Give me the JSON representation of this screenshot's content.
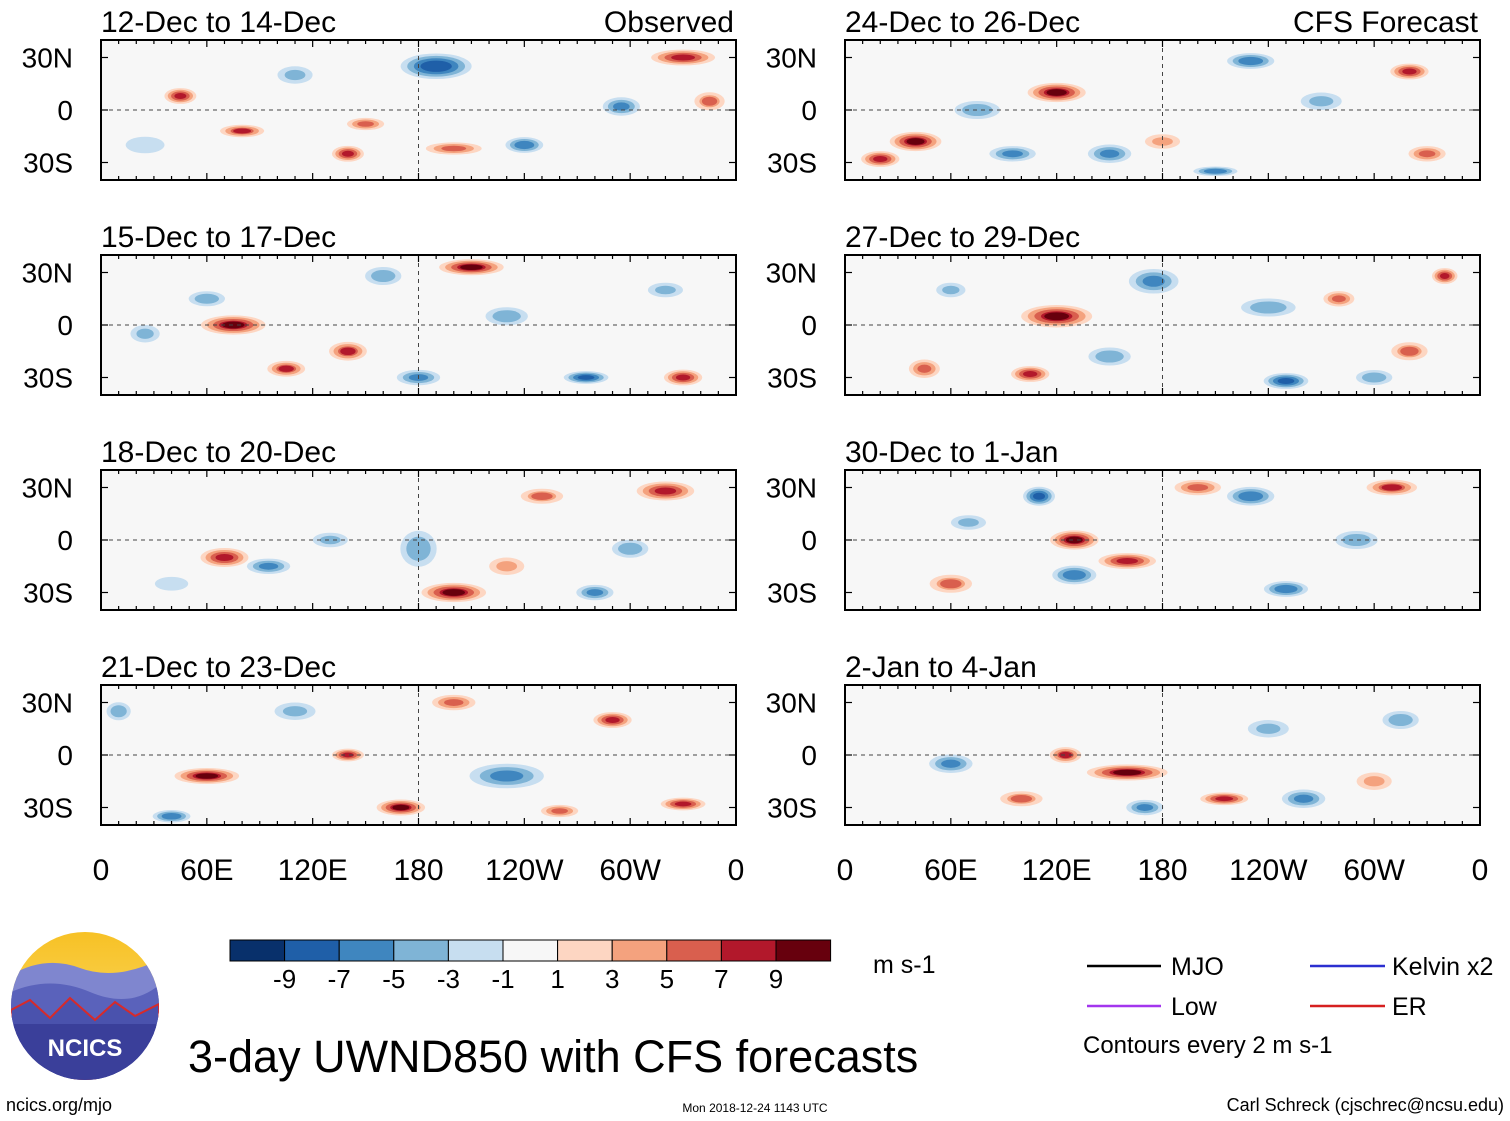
{
  "chart_data": {
    "type": "heatmap",
    "title": "3-day UWND850 with CFS forecasts",
    "variable": "850-hPa zonal wind anomaly",
    "units": "m s-1",
    "contour_note": "Contours every 2 m s-1",
    "x_ticks": [
      "0",
      "60E",
      "120E",
      "180",
      "120W",
      "60W",
      "0"
    ],
    "y_ticks": [
      "30N",
      "0",
      "30S"
    ],
    "xlim_deg_east": [
      0,
      360
    ],
    "ylim_deg": [
      -40,
      40
    ],
    "colorbar": {
      "tick_labels": [
        "-9",
        "-7",
        "-5",
        "-3",
        "-1",
        "1",
        "3",
        "5",
        "7",
        "9"
      ],
      "colors": [
        "#08306b",
        "#1f5fa8",
        "#3f86bf",
        "#7fb4d6",
        "#c7def0",
        "#f7f7f7",
        "#fdd6c2",
        "#f4a27e",
        "#d95f4e",
        "#b2182b",
        "#67000d"
      ]
    },
    "legend": [
      {
        "label": "MJO",
        "color": "#000000"
      },
      {
        "label": "Kelvin x2",
        "color": "#2b2fd0"
      },
      {
        "label": "Low",
        "color": "#a335ee"
      },
      {
        "label": "ER",
        "color": "#d62020"
      }
    ],
    "panels": [
      {
        "period": "12-Dec to 14-Dec",
        "tag": "Observed",
        "col": 0,
        "row": 0,
        "blobs": [
          [
            45,
            8,
            10,
            5,
            8
          ],
          [
            80,
            -12,
            14,
            4,
            7
          ],
          [
            140,
            -25,
            10,
            5,
            8
          ],
          [
            150,
            -8,
            12,
            4,
            6
          ],
          [
            190,
            25,
            22,
            8,
            -9
          ],
          [
            240,
            -20,
            12,
            5,
            -7
          ],
          [
            295,
            2,
            12,
            6,
            -6
          ],
          [
            330,
            30,
            20,
            5,
            8
          ],
          [
            200,
            -22,
            18,
            4,
            6
          ],
          [
            110,
            20,
            12,
            6,
            -4
          ],
          [
            345,
            5,
            10,
            6,
            5
          ],
          [
            25,
            -20,
            14,
            6,
            -3
          ]
        ]
      },
      {
        "period": "24-Dec to 26-Dec",
        "tag": "CFS Forecast",
        "col": 1,
        "row": 0,
        "blobs": [
          [
            120,
            10,
            18,
            6,
            9
          ],
          [
            40,
            -18,
            16,
            6,
            9
          ],
          [
            20,
            -28,
            12,
            5,
            8
          ],
          [
            230,
            28,
            15,
            5,
            -7
          ],
          [
            320,
            22,
            12,
            5,
            8
          ],
          [
            150,
            -25,
            14,
            6,
            -6
          ],
          [
            75,
            0,
            15,
            6,
            -5
          ],
          [
            95,
            -25,
            15,
            5,
            -6
          ],
          [
            210,
            -35,
            14,
            3,
            -7
          ],
          [
            330,
            -25,
            12,
            5,
            6
          ],
          [
            270,
            5,
            14,
            6,
            -4
          ],
          [
            180,
            -18,
            12,
            5,
            4
          ]
        ]
      },
      {
        "period": "15-Dec to 17-Dec",
        "tag": "",
        "col": 0,
        "row": 1,
        "blobs": [
          [
            75,
            0,
            20,
            6,
            9
          ],
          [
            210,
            33,
            20,
            5,
            9
          ],
          [
            140,
            -15,
            12,
            6,
            7
          ],
          [
            105,
            -25,
            12,
            5,
            7
          ],
          [
            275,
            -30,
            14,
            4,
            -8
          ],
          [
            60,
            15,
            12,
            5,
            -5
          ],
          [
            160,
            28,
            12,
            6,
            -5
          ],
          [
            330,
            -30,
            12,
            5,
            8
          ],
          [
            320,
            20,
            12,
            5,
            -4
          ],
          [
            25,
            -5,
            10,
            6,
            -4
          ],
          [
            230,
            5,
            14,
            6,
            -5
          ],
          [
            180,
            -30,
            14,
            5,
            -6
          ]
        ]
      },
      {
        "period": "27-Dec to 29-Dec",
        "tag": "",
        "col": 1,
        "row": 1,
        "blobs": [
          [
            120,
            5,
            22,
            7,
            9
          ],
          [
            105,
            -28,
            12,
            5,
            8
          ],
          [
            45,
            -25,
            10,
            6,
            6
          ],
          [
            250,
            -32,
            14,
            5,
            -8
          ],
          [
            340,
            28,
            8,
            5,
            8
          ],
          [
            175,
            25,
            16,
            8,
            -6
          ],
          [
            240,
            10,
            18,
            6,
            -5
          ],
          [
            320,
            -15,
            12,
            6,
            5
          ],
          [
            150,
            -18,
            14,
            6,
            -5
          ],
          [
            60,
            20,
            10,
            5,
            -4
          ],
          [
            300,
            -30,
            12,
            5,
            -5
          ],
          [
            280,
            15,
            10,
            5,
            6
          ]
        ]
      },
      {
        "period": "18-Dec to 20-Dec",
        "tag": "",
        "col": 0,
        "row": 2,
        "blobs": [
          [
            70,
            -10,
            15,
            6,
            8
          ],
          [
            200,
            -30,
            20,
            6,
            9
          ],
          [
            320,
            28,
            18,
            6,
            8
          ],
          [
            95,
            -15,
            14,
            5,
            -6
          ],
          [
            180,
            -5,
            12,
            12,
            -5
          ],
          [
            280,
            -30,
            12,
            5,
            -6
          ],
          [
            300,
            -5,
            12,
            6,
            -5
          ],
          [
            250,
            25,
            14,
            5,
            5
          ],
          [
            130,
            0,
            12,
            5,
            -4
          ],
          [
            40,
            -25,
            12,
            5,
            -3
          ],
          [
            230,
            -15,
            12,
            6,
            4
          ]
        ]
      },
      {
        "period": "30-Dec to 1-Jan",
        "tag": "",
        "col": 1,
        "row": 2,
        "blobs": [
          [
            130,
            0,
            15,
            6,
            9
          ],
          [
            160,
            -12,
            18,
            5,
            8
          ],
          [
            130,
            -20,
            14,
            6,
            -7
          ],
          [
            110,
            25,
            10,
            6,
            -8
          ],
          [
            230,
            25,
            15,
            6,
            -7
          ],
          [
            310,
            30,
            16,
            5,
            7
          ],
          [
            250,
            -28,
            14,
            5,
            -7
          ],
          [
            60,
            -25,
            14,
            6,
            5
          ],
          [
            70,
            10,
            12,
            5,
            -4
          ],
          [
            200,
            30,
            15,
            5,
            6
          ],
          [
            290,
            0,
            14,
            6,
            -5
          ]
        ]
      },
      {
        "period": "21-Dec to 23-Dec",
        "tag": "",
        "col": 0,
        "row": 3,
        "blobs": [
          [
            60,
            -12,
            20,
            5,
            9
          ],
          [
            140,
            0,
            10,
            4,
            8
          ],
          [
            170,
            -30,
            15,
            5,
            9
          ],
          [
            330,
            -28,
            14,
            4,
            8
          ],
          [
            230,
            -12,
            24,
            8,
            -6
          ],
          [
            40,
            -35,
            12,
            4,
            -7
          ],
          [
            290,
            20,
            12,
            5,
            8
          ],
          [
            10,
            25,
            8,
            6,
            -5
          ],
          [
            200,
            30,
            14,
            5,
            6
          ],
          [
            110,
            25,
            14,
            6,
            -4
          ],
          [
            260,
            -32,
            12,
            4,
            6
          ]
        ]
      },
      {
        "period": "2-Jan to 4-Jan",
        "tag": "",
        "col": 1,
        "row": 3,
        "blobs": [
          [
            160,
            -10,
            25,
            5,
            9
          ],
          [
            215,
            -25,
            15,
            4,
            8
          ],
          [
            125,
            0,
            10,
            5,
            7
          ],
          [
            60,
            -5,
            14,
            6,
            -6
          ],
          [
            260,
            -25,
            14,
            6,
            -6
          ],
          [
            170,
            -30,
            12,
            5,
            -6
          ],
          [
            100,
            -25,
            14,
            5,
            5
          ],
          [
            240,
            15,
            14,
            6,
            -4
          ],
          [
            315,
            20,
            12,
            6,
            -5
          ],
          [
            300,
            -15,
            12,
            6,
            4
          ]
        ]
      }
    ]
  },
  "branding": {
    "logo_text": "NCICS",
    "website": "ncics.org/mjo",
    "timestamp": "Mon 2018-12-24 1143 UTC",
    "credit": "Carl Schreck (cjschrec@ncsu.edu)"
  }
}
